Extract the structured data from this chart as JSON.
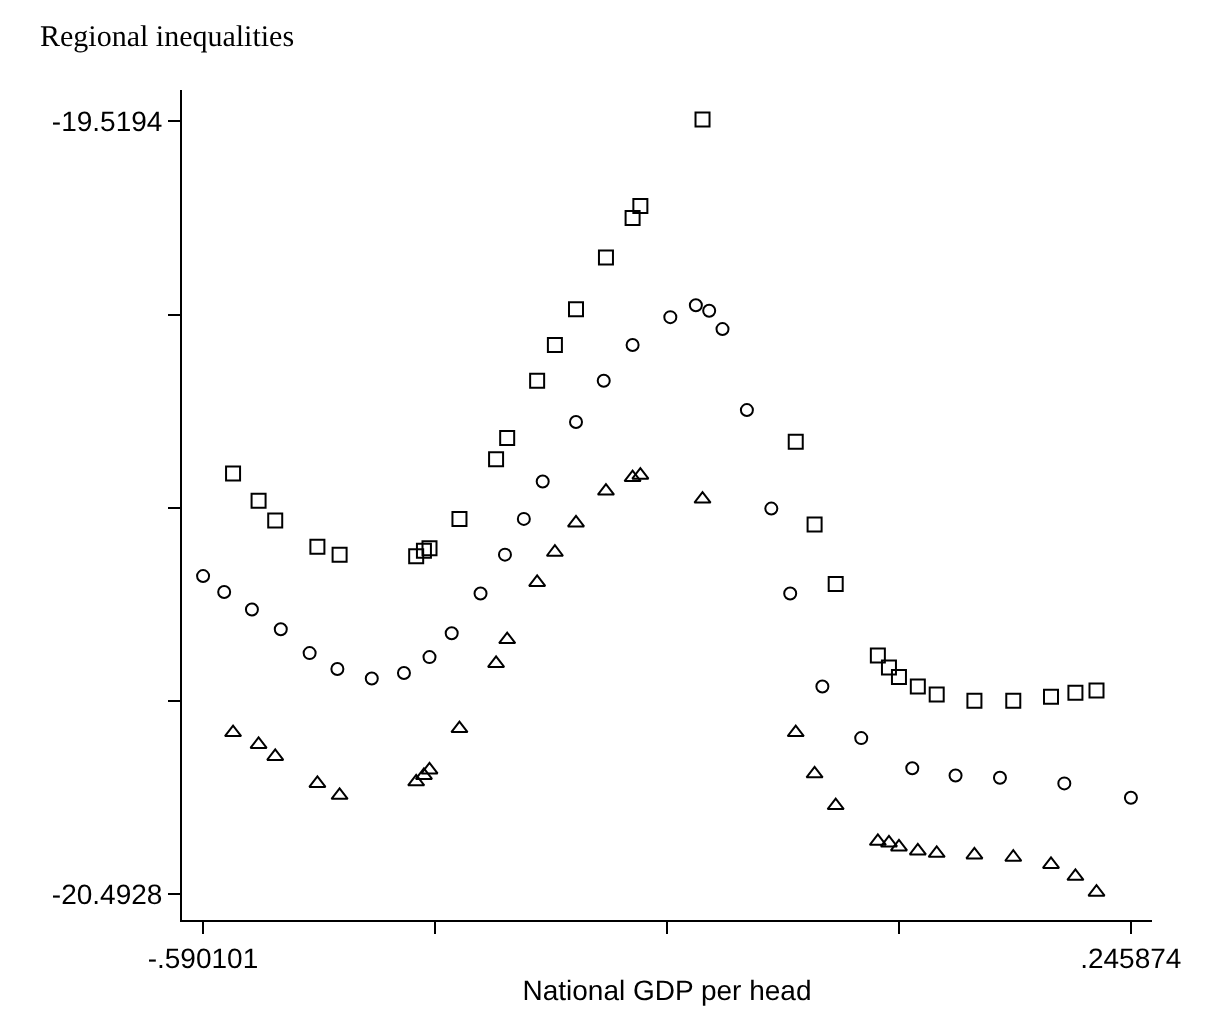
{
  "chart_data": {
    "type": "scatter",
    "title": "Regional inequalities",
    "xlabel": "National GDP per head",
    "xlim": [
      -0.609,
      0.265
    ],
    "ylim": [
      -20.525,
      -19.48
    ],
    "xticks": [
      {
        "value": -0.590101,
        "label": "-.590101"
      },
      {
        "value": -0.381,
        "label": null
      },
      {
        "value": -0.172,
        "label": null
      },
      {
        "value": 0.037,
        "label": null
      },
      {
        "value": 0.245874,
        "label": ".245874"
      }
    ],
    "yticks": [
      {
        "value": -19.5194,
        "label": "-19.5194"
      },
      {
        "value": -19.763,
        "label": null
      },
      {
        "value": -20.006,
        "label": null
      },
      {
        "value": -20.249,
        "label": null
      },
      {
        "value": -20.4928,
        "label": "-20.4928"
      }
    ],
    "series": [
      {
        "color": "#000000",
        "marker": "circle",
        "x": [
          -0.59,
          -0.571,
          -0.546,
          -0.52,
          -0.494,
          -0.469,
          -0.438,
          -0.409,
          -0.386,
          -0.366,
          -0.34,
          -0.318,
          -0.301,
          -0.284,
          -0.254,
          -0.229,
          -0.203,
          -0.169,
          -0.146,
          -0.134,
          -0.122,
          -0.1,
          -0.078,
          -0.061,
          -0.032,
          0.003,
          0.049,
          0.088,
          0.128,
          0.186,
          0.246
        ],
        "values": [
          -20.092,
          -20.112,
          -20.134,
          -20.159,
          -20.189,
          -20.209,
          -20.221,
          -20.214,
          -20.194,
          -20.164,
          -20.114,
          -20.065,
          -20.02,
          -19.973,
          -19.898,
          -19.846,
          -19.801,
          -19.766,
          -19.751,
          -19.758,
          -19.781,
          -19.883,
          -20.007,
          -20.114,
          -20.231,
          -20.296,
          -20.334,
          -20.343,
          -20.346,
          -20.353,
          -20.371
        ]
      },
      {
        "color": "#000000",
        "marker": "square",
        "x": [
          -0.563,
          -0.54,
          -0.525,
          -0.487,
          -0.467,
          -0.398,
          -0.391,
          -0.386,
          -0.359,
          -0.326,
          -0.316,
          -0.289,
          -0.273,
          -0.254,
          -0.227,
          -0.203,
          -0.196,
          -0.14,
          -0.056,
          -0.039,
          -0.02,
          0.018,
          0.028,
          0.037,
          0.054,
          0.071,
          0.105,
          0.14,
          0.174,
          0.196,
          0.215
        ],
        "values": [
          -19.963,
          -19.997,
          -20.022,
          -20.055,
          -20.065,
          -20.067,
          -20.06,
          -20.057,
          -20.02,
          -19.945,
          -19.918,
          -19.846,
          -19.801,
          -19.756,
          -19.691,
          -19.641,
          -19.626,
          -19.517,
          -19.923,
          -20.027,
          -20.102,
          -20.192,
          -20.207,
          -20.219,
          -20.231,
          -20.241,
          -20.249,
          -20.249,
          -20.244,
          -20.239,
          -20.236
        ]
      },
      {
        "color": "#000000",
        "marker": "triangle",
        "x": [
          -0.563,
          -0.54,
          -0.525,
          -0.487,
          -0.467,
          -0.398,
          -0.391,
          -0.386,
          -0.359,
          -0.326,
          -0.316,
          -0.289,
          -0.273,
          -0.254,
          -0.227,
          -0.203,
          -0.196,
          -0.14,
          -0.056,
          -0.039,
          -0.02,
          0.018,
          0.028,
          0.037,
          0.054,
          0.071,
          0.105,
          0.14,
          0.174,
          0.196,
          0.215
        ],
        "values": [
          -20.289,
          -20.304,
          -20.319,
          -20.353,
          -20.368,
          -20.351,
          -20.343,
          -20.336,
          -20.284,
          -20.202,
          -20.172,
          -20.1,
          -20.062,
          -20.025,
          -19.985,
          -19.968,
          -19.965,
          -19.995,
          -20.289,
          -20.341,
          -20.381,
          -20.426,
          -20.428,
          -20.433,
          -20.438,
          -20.441,
          -20.443,
          -20.446,
          -20.455,
          -20.47,
          -20.49
        ]
      }
    ]
  }
}
